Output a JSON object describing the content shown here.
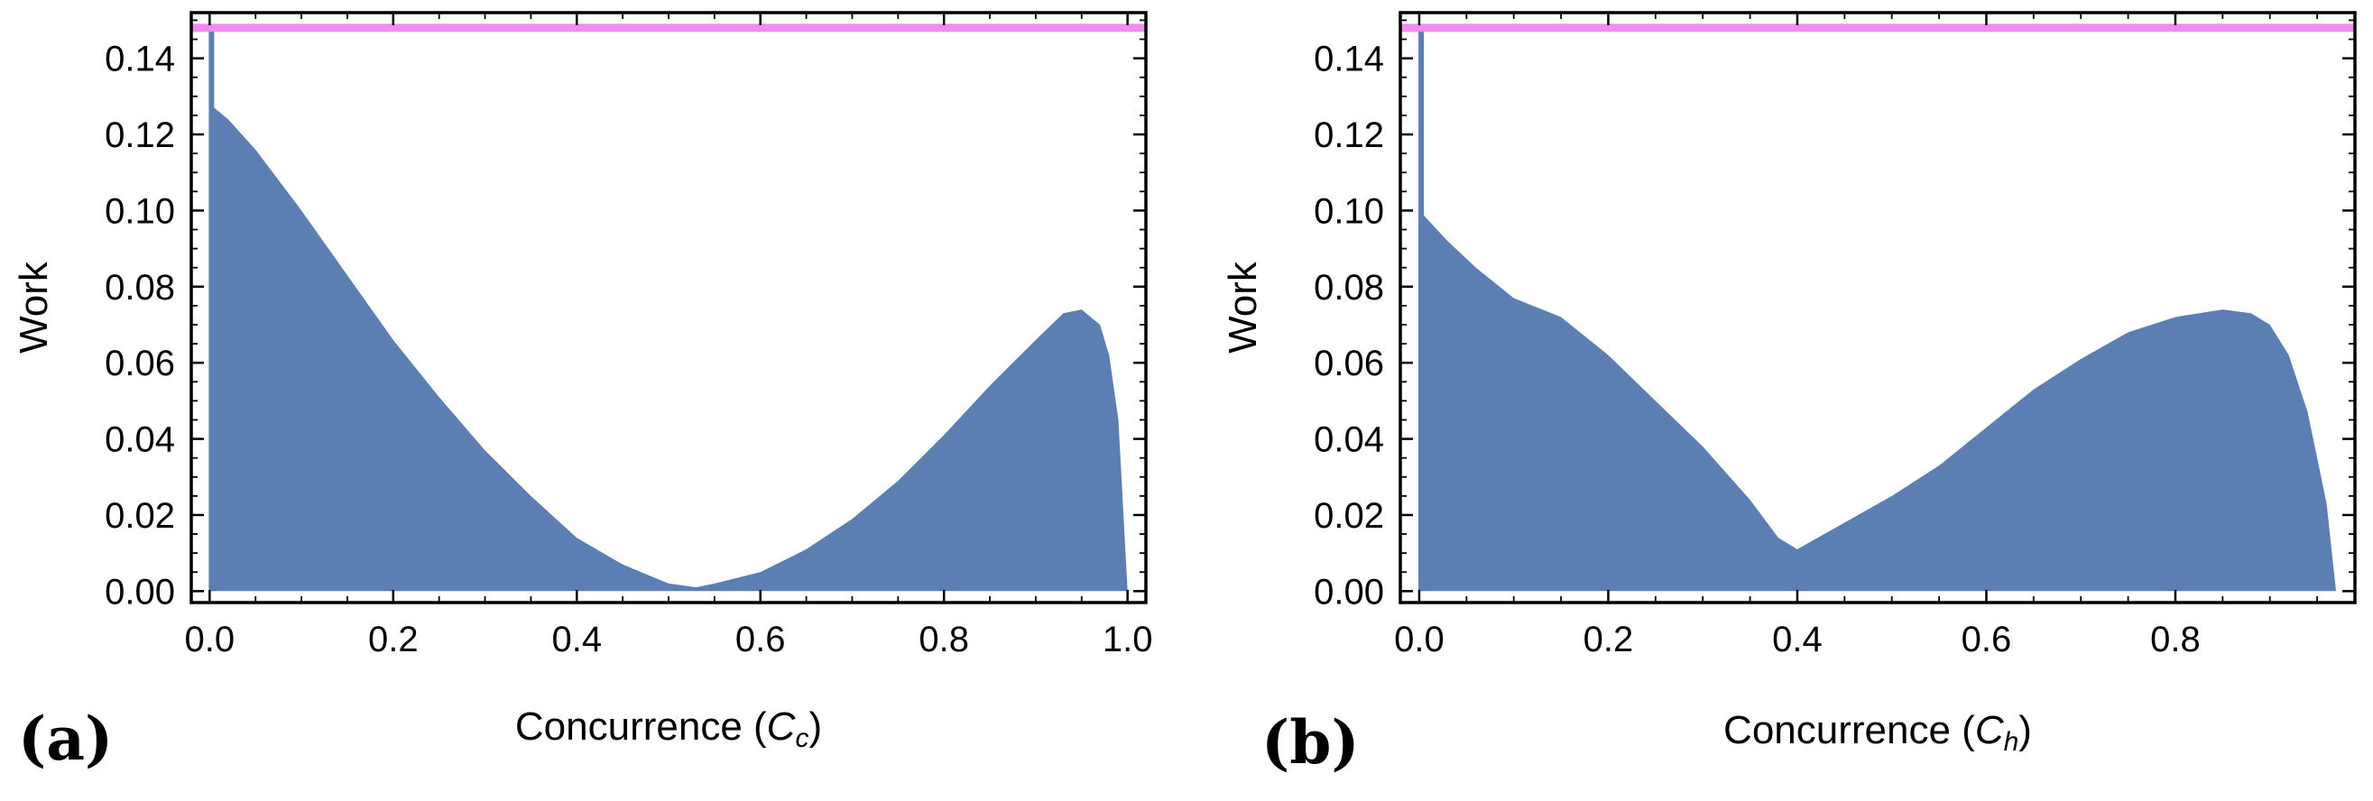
{
  "colors": {
    "scatter": "#5b7fb3",
    "bound_line": "#f08cf0",
    "frame": "#000000"
  },
  "chart_data": [
    {
      "type": "scatter",
      "panel_label": "(a)",
      "xlabel_prefix": "Concurrence (",
      "xlabel_var": "C",
      "xlabel_sub": "c",
      "xlabel_suffix": ")",
      "ylabel": "Work",
      "xlim": [
        -0.02,
        1.02
      ],
      "ylim": [
        -0.003,
        0.152
      ],
      "x_ticks": [
        0.0,
        0.2,
        0.4,
        0.6,
        0.8,
        1.0
      ],
      "x_tick_labels": [
        "0.0",
        "0.2",
        "0.4",
        "0.6",
        "0.8",
        "1.0"
      ],
      "y_ticks": [
        0.0,
        0.02,
        0.04,
        0.06,
        0.08,
        0.1,
        0.12,
        0.14
      ],
      "y_tick_labels": [
        "0.00",
        "0.02",
        "0.04",
        "0.06",
        "0.08",
        "0.10",
        "0.12",
        "0.14"
      ],
      "reference_line": {
        "name": "work upper bound",
        "y": 0.148
      },
      "spike": {
        "x": 0.002,
        "y": 0.148
      },
      "envelope": {
        "x": [
          0.0,
          0.02,
          0.05,
          0.1,
          0.15,
          0.2,
          0.25,
          0.3,
          0.35,
          0.4,
          0.45,
          0.5,
          0.53,
          0.55,
          0.6,
          0.65,
          0.7,
          0.75,
          0.8,
          0.85,
          0.9,
          0.93,
          0.95,
          0.97,
          0.98,
          0.99,
          1.0
        ],
        "y": [
          0.128,
          0.124,
          0.116,
          0.1,
          0.083,
          0.066,
          0.051,
          0.037,
          0.025,
          0.014,
          0.007,
          0.002,
          0.001,
          0.002,
          0.005,
          0.011,
          0.019,
          0.029,
          0.041,
          0.054,
          0.066,
          0.073,
          0.074,
          0.07,
          0.062,
          0.045,
          0.0
        ]
      }
    },
    {
      "type": "scatter",
      "panel_label": "(b)",
      "xlabel_prefix": "Concurrence (",
      "xlabel_var": "C",
      "xlabel_sub": "h",
      "xlabel_suffix": ")",
      "ylabel": "Work",
      "xlim": [
        -0.02,
        0.99
      ],
      "ylim": [
        -0.003,
        0.152
      ],
      "x_ticks": [
        0.0,
        0.2,
        0.4,
        0.6,
        0.8
      ],
      "x_tick_labels": [
        "0.0",
        "0.2",
        "0.4",
        "0.6",
        "0.8"
      ],
      "y_ticks": [
        0.0,
        0.02,
        0.04,
        0.06,
        0.08,
        0.1,
        0.12,
        0.14
      ],
      "y_tick_labels": [
        "0.00",
        "0.02",
        "0.04",
        "0.06",
        "0.08",
        "0.10",
        "0.12",
        "0.14"
      ],
      "reference_line": {
        "name": "work upper bound",
        "y": 0.148
      },
      "spike": {
        "x": 0.002,
        "y": 0.148
      },
      "envelope": {
        "x": [
          0.0,
          0.03,
          0.06,
          0.1,
          0.15,
          0.2,
          0.25,
          0.3,
          0.35,
          0.38,
          0.4,
          0.45,
          0.5,
          0.55,
          0.6,
          0.65,
          0.7,
          0.75,
          0.8,
          0.85,
          0.88,
          0.9,
          0.92,
          0.94,
          0.96,
          0.97
        ],
        "y": [
          0.1,
          0.092,
          0.085,
          0.077,
          0.072,
          0.062,
          0.05,
          0.038,
          0.024,
          0.014,
          0.011,
          0.018,
          0.025,
          0.033,
          0.043,
          0.053,
          0.061,
          0.068,
          0.072,
          0.074,
          0.073,
          0.07,
          0.062,
          0.047,
          0.023,
          0.0
        ]
      }
    }
  ]
}
